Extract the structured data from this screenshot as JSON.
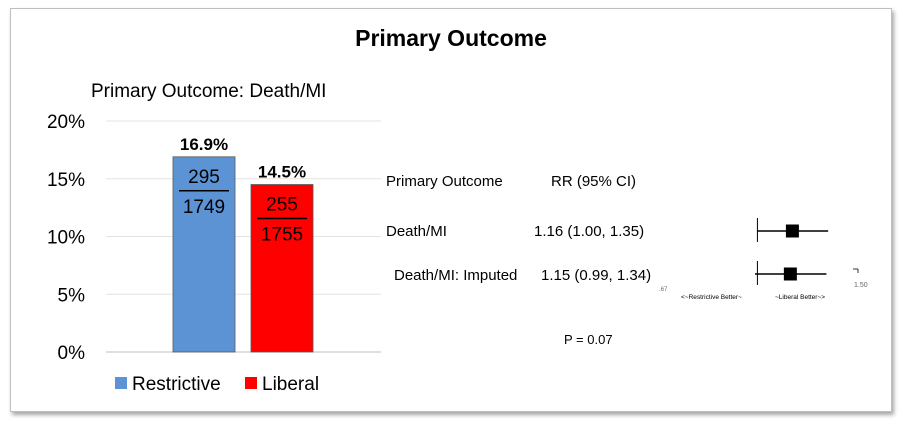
{
  "slide": {
    "title": "Primary Outcome"
  },
  "chart_data": {
    "type": "bar",
    "title": "Primary Outcome: Death/MI",
    "ylim": [
      0,
      0.2
    ],
    "y_ticks": [
      "0%",
      "5%",
      "10%",
      "15%",
      "20%"
    ],
    "y_tick_values": [
      0,
      0.05,
      0.1,
      0.15,
      0.2
    ],
    "gridlines": true,
    "legend_position": "bottom",
    "series": [
      {
        "name": "Restrictive",
        "value": 0.169,
        "label": "16.9%",
        "numerator": "295",
        "denominator": "1749",
        "color": "#5b93d5"
      },
      {
        "name": "Liberal",
        "value": 0.145,
        "label": "14.5%",
        "numerator": "255",
        "denominator": "1755",
        "color": "#ff0000"
      }
    ]
  },
  "forest": {
    "header_outcome": "Primary Outcome",
    "header_rr": "RR (95% CI)",
    "xlim": [
      0.67,
      1.5
    ],
    "rows": [
      {
        "outcome": "Death/MI",
        "rr_text": "1.16 (1.00, 1.35)",
        "rr": 1.16,
        "lo": 1.0,
        "hi": 1.35
      },
      {
        "outcome": "Death/MI: Imputed",
        "rr_text": "1.15 (0.99, 1.34)",
        "rr": 1.15,
        "lo": 0.99,
        "hi": 1.34
      }
    ],
    "axis_tick_labels": [
      ".67",
      "1.50"
    ],
    "left_arrow_label": "<~Restrictive Better~",
    "right_arrow_label": "~Liberal Better~>",
    "p_value": "P = 0.07"
  }
}
